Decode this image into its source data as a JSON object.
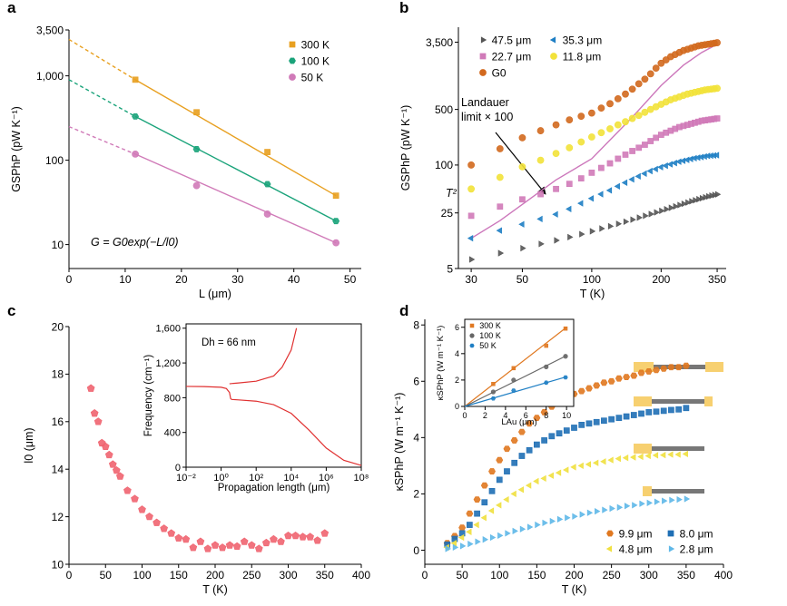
{
  "chart_data": [
    {
      "type": "scatter",
      "label": "a",
      "xlabel": "L (μm)",
      "ylabel": "GSPhP (pW K⁻¹)",
      "xlim": [
        0,
        52
      ],
      "xticks": [
        0,
        10,
        20,
        30,
        40,
        50
      ],
      "yscale": "log",
      "ylim": [
        5.2,
        3500
      ],
      "yticks": [
        10,
        100,
        {
          "value": 1000,
          "label": "1,000"
        },
        {
          "value": 3500,
          "label": "3,500"
        }
      ],
      "legend": "upper right",
      "x": [
        11.8,
        22.7,
        35.3,
        47.5
      ],
      "series": [
        {
          "name": "300 K",
          "color": "#e8a020",
          "marker": "square",
          "values": [
            900,
            370,
            125,
            38
          ]
        },
        {
          "name": "100 K",
          "color": "#1aa37a",
          "marker": "hexagon",
          "values": [
            330,
            135,
            52,
            19
          ]
        },
        {
          "name": "50 K",
          "color": "#d07ab8",
          "marker": "circle",
          "values": [
            118,
            50,
            23,
            10.5
          ]
        }
      ],
      "lines": [
        {
          "color": "#e8a020",
          "dashed": true,
          "x": [
            0,
            11.8
          ],
          "values": [
            2700,
            900
          ]
        },
        {
          "color": "#e8a020",
          "x": [
            11.8,
            47.5
          ],
          "values": [
            900,
            38
          ]
        },
        {
          "color": "#1aa37a",
          "dashed": true,
          "x": [
            0,
            11.8
          ],
          "values": [
            900,
            330
          ]
        },
        {
          "color": "#1aa37a",
          "x": [
            11.8,
            47.5
          ],
          "values": [
            330,
            19
          ]
        },
        {
          "color": "#d07ab8",
          "dashed": true,
          "x": [
            0,
            11.8
          ],
          "values": [
            250,
            118
          ]
        },
        {
          "color": "#d07ab8",
          "x": [
            11.8,
            47.5
          ],
          "values": [
            118,
            10.5
          ]
        }
      ],
      "annotations": [
        "G = G0exp(−L/l0)"
      ]
    },
    {
      "type": "scatter",
      "label": "b",
      "xlabel": "T (K)",
      "ylabel": "GSPhP (pW K⁻¹)",
      "xscale": "log",
      "xlim": [
        26.4,
        383
      ],
      "xticks": [
        30,
        50,
        100,
        200,
        350
      ],
      "yscale": "log",
      "ylim": [
        5,
        5400
      ],
      "yticks": [
        5,
        25,
        100,
        500,
        {
          "value": 3500,
          "label": "3,500"
        }
      ],
      "legend": "upper left",
      "legend_columns": 2,
      "x": [
        30,
        40,
        50,
        60,
        70,
        80,
        90,
        100,
        110,
        120,
        130,
        140,
        150,
        160,
        170,
        180,
        190,
        200,
        210,
        220,
        230,
        240,
        250,
        260,
        270,
        280,
        290,
        300,
        310,
        320,
        330,
        340,
        350
      ],
      "series": [
        {
          "name": "47.5 μm",
          "color": "#555555",
          "marker": "triangle-right",
          "values": [
            6.5,
            7.8,
            9,
            10.2,
            11.3,
            12.4,
            13.5,
            14.7,
            15.9,
            17,
            18.2,
            19.4,
            20.6,
            21.8,
            23,
            24.2,
            25.4,
            26.6,
            27.8,
            29,
            30.2,
            31.4,
            32.6,
            33.8,
            35,
            36.1,
            37.2,
            38.3,
            39.3,
            40.3,
            41.2,
            42,
            42.8
          ]
        },
        {
          "name": "35.3 μm",
          "color": "#1f7fc4",
          "marker": "triangle-left",
          "values": [
            12,
            15,
            18,
            21,
            24,
            28,
            33,
            38,
            43,
            48,
            54,
            60,
            66,
            72,
            78,
            84,
            89,
            94,
            98,
            102,
            106,
            110,
            113,
            116,
            119,
            122,
            124,
            126,
            128,
            130,
            131,
            132,
            133
          ]
        },
        {
          "name": "22.7 μm",
          "color": "#d07ab8",
          "marker": "square",
          "values": [
            23,
            30,
            37,
            43,
            50,
            58,
            68,
            80,
            92,
            105,
            120,
            135,
            150,
            165,
            180,
            200,
            220,
            240,
            255,
            270,
            285,
            300,
            310,
            320,
            330,
            340,
            350,
            360,
            365,
            370,
            375,
            380,
            385
          ]
        },
        {
          "name": "11.8 μm",
          "color": "#f2e23a",
          "marker": "circle",
          "values": [
            50,
            70,
            95,
            115,
            140,
            165,
            195,
            225,
            255,
            285,
            320,
            350,
            385,
            420,
            460,
            500,
            540,
            580,
            620,
            660,
            690,
            720,
            750,
            780,
            800,
            820,
            840,
            860,
            880,
            890,
            900,
            910,
            920
          ]
        },
        {
          "name": "G0",
          "color": "#d2691e",
          "marker": "circle",
          "values": [
            100,
            160,
            220,
            270,
            320,
            370,
            410,
            450,
            520,
            590,
            680,
            780,
            900,
            1050,
            1200,
            1400,
            1650,
            1900,
            2100,
            2300,
            2450,
            2600,
            2750,
            2850,
            2950,
            3050,
            3150,
            3200,
            3250,
            3300,
            3350,
            3400,
            3450
          ]
        }
      ],
      "lines": [
        {
          "color": "#cc77bb",
          "x": [
            30,
            40,
            50,
            70,
            100,
            150,
            200,
            250,
            300,
            350
          ],
          "values": [
            12,
            20,
            32,
            65,
            120,
            400,
            1000,
            1800,
            2600,
            3300
          ]
        }
      ],
      "annotations": [
        "Landauer",
        "limit × 100",
        "T²"
      ]
    },
    {
      "type": "scatter",
      "label": "c",
      "xlabel": "T (K)",
      "ylabel": "l0 (μm)",
      "xlim": [
        0,
        400
      ],
      "xticks": [
        0,
        50,
        100,
        150,
        200,
        250,
        300,
        350,
        400
      ],
      "ylim": [
        10,
        20
      ],
      "yticks": [
        10,
        12,
        14,
        16,
        18,
        20
      ],
      "x": [
        30,
        35,
        40,
        45,
        50,
        55,
        60,
        65,
        70,
        80,
        90,
        100,
        110,
        120,
        130,
        140,
        150,
        160,
        170,
        180,
        190,
        200,
        210,
        220,
        230,
        240,
        250,
        260,
        270,
        280,
        290,
        300,
        310,
        320,
        330,
        340,
        350
      ],
      "series": [
        {
          "color": "#f06470",
          "marker": "pentagon",
          "values": [
            17.4,
            16.35,
            16,
            15.1,
            14.95,
            14.6,
            14.2,
            13.95,
            13.7,
            13.1,
            12.75,
            12.3,
            12.0,
            11.75,
            11.5,
            11.3,
            11.1,
            11.05,
            10.7,
            10.95,
            10.65,
            10.8,
            10.7,
            10.8,
            10.75,
            10.95,
            10.8,
            10.65,
            10.9,
            11.05,
            10.95,
            11.2,
            11.2,
            11.15,
            11.15,
            11.0,
            11.3
          ]
        }
      ],
      "inset": {
        "type": "line",
        "xlabel": "Propagation length (μm)",
        "ylabel": "Frequency (cm⁻¹)",
        "xscale": "log",
        "xlim": [
          0.01,
          100000000
        ],
        "xticks": [
          {
            "value": 0.01,
            "label": "10⁻²"
          },
          {
            "value": 1,
            "label": "10⁰"
          },
          {
            "value": 100,
            "label": "10²"
          },
          {
            "value": 10000,
            "label": "10⁴"
          },
          {
            "value": 1000000,
            "label": "10⁶"
          },
          {
            "value": 100000000,
            "label": "10⁸"
          }
        ],
        "ylim": [
          0,
          1650
        ],
        "yticks": [
          0,
          400,
          800,
          {
            "value": 1200,
            "label": "1,200"
          },
          {
            "value": 1600,
            "label": "1,600"
          }
        ],
        "lines": [
          {
            "color": "#e03030",
            "x": [
              0.01,
              0.1,
              1,
              2,
              3,
              3.5,
              4,
              10,
              100,
              1000,
              10000,
              100000,
              1000000,
              10000000,
              100000000
            ],
            "values": [
              930,
              928,
              920,
              905,
              860,
              790,
              780,
              775,
              760,
              720,
              620,
              430,
              220,
              80,
              20
            ]
          },
          {
            "color": "#e03030",
            "x": [
              3,
              5,
              10,
              100,
              1000,
              3000,
              10000,
              20000
            ],
            "values": [
              960,
              965,
              970,
              990,
              1050,
              1150,
              1350,
              1600
            ]
          }
        ],
        "annotations": [
          "Dh = 66 nm"
        ]
      }
    },
    {
      "type": "scatter",
      "label": "d",
      "xlabel": "T (K)",
      "ylabel": "κSPhP (W m⁻¹ K⁻¹)",
      "xlim": [
        0,
        400
      ],
      "xticks": [
        0,
        50,
        100,
        150,
        200,
        250,
        300,
        350,
        400
      ],
      "ylim": [
        -0.5,
        8.2
      ],
      "yticks": [
        0,
        2,
        4,
        6,
        8
      ],
      "legend": "lower right",
      "legend_columns": 2,
      "x": [
        30,
        40,
        50,
        60,
        70,
        80,
        90,
        100,
        110,
        120,
        130,
        140,
        150,
        160,
        170,
        180,
        190,
        200,
        210,
        220,
        230,
        240,
        250,
        260,
        270,
        280,
        290,
        300,
        310,
        320,
        330,
        340,
        350
      ],
      "series": [
        {
          "name": "9.9 μm",
          "color": "#e07820",
          "marker": "hexagon",
          "values": [
            0.25,
            0.5,
            0.8,
            1.3,
            1.8,
            2.3,
            2.8,
            3.2,
            3.6,
            3.9,
            4.2,
            4.5,
            4.7,
            4.9,
            5.1,
            5.3,
            5.4,
            5.55,
            5.65,
            5.75,
            5.85,
            5.95,
            6.0,
            6.1,
            6.15,
            6.2,
            6.3,
            6.35,
            6.4,
            6.45,
            6.5,
            6.5,
            6.55
          ]
        },
        {
          "name": "8.0 μm",
          "color": "#1f6fb5",
          "marker": "square",
          "values": [
            0.2,
            0.4,
            0.6,
            0.9,
            1.3,
            1.7,
            2.1,
            2.5,
            2.8,
            3.1,
            3.35,
            3.55,
            3.75,
            3.9,
            4.05,
            4.15,
            4.25,
            4.35,
            4.45,
            4.5,
            4.55,
            4.6,
            4.65,
            4.7,
            4.75,
            4.8,
            4.85,
            4.9,
            4.92,
            4.95,
            4.98,
            5.0,
            5.05
          ]
        },
        {
          "name": "4.8 μm",
          "color": "#f0e040",
          "marker": "triangle-left",
          "values": [
            0.1,
            0.25,
            0.45,
            0.65,
            0.9,
            1.15,
            1.4,
            1.6,
            1.8,
            2.0,
            2.15,
            2.3,
            2.45,
            2.55,
            2.65,
            2.75,
            2.85,
            2.95,
            3.0,
            3.05,
            3.1,
            3.15,
            3.2,
            3.25,
            3.28,
            3.3,
            3.32,
            3.35,
            3.37,
            3.38,
            3.4,
            3.4,
            3.42
          ]
        },
        {
          "name": "2.8 μm",
          "color": "#5fb8e8",
          "marker": "triangle-right",
          "values": [
            0.05,
            0.1,
            0.15,
            0.22,
            0.3,
            0.38,
            0.45,
            0.52,
            0.6,
            0.68,
            0.75,
            0.82,
            0.9,
            0.97,
            1.03,
            1.1,
            1.15,
            1.2,
            1.27,
            1.33,
            1.38,
            1.43,
            1.48,
            1.52,
            1.57,
            1.6,
            1.65,
            1.68,
            1.72,
            1.75,
            1.78,
            1.8,
            1.82
          ]
        }
      ],
      "inset": {
        "type": "scatter",
        "xlabel": "LAu (μm)",
        "ylabel": "κSPhP (W m⁻¹ K⁻¹)",
        "xlim": [
          0,
          10.7
        ],
        "xticks": [
          0,
          2,
          4,
          6,
          8,
          10
        ],
        "ylim": [
          0,
          6.6
        ],
        "yticks": [
          0,
          2,
          4,
          6
        ],
        "legend": "upper left",
        "x": [
          2.8,
          4.8,
          8.0,
          9.9
        ],
        "series": [
          {
            "name": "300 K",
            "color": "#e07820",
            "marker": "square",
            "values": [
              1.7,
              2.9,
              4.6,
              5.9
            ]
          },
          {
            "name": "100 K",
            "color": "#666666",
            "marker": "circle",
            "values": [
              1.1,
              2.0,
              3.0,
              3.8
            ]
          },
          {
            "name": "50 K",
            "color": "#1f7fc4",
            "marker": "hexagon",
            "values": [
              0.6,
              1.2,
              1.8,
              2.2
            ]
          }
        ],
        "lines": [
          {
            "color": "#e07820",
            "x": [
              0,
              10
            ],
            "values": [
              0,
              6.0
            ]
          },
          {
            "color": "#666666",
            "x": [
              0,
              10
            ],
            "values": [
              0,
              3.85
            ]
          },
          {
            "color": "#1f7fc4",
            "x": [
              0,
              10
            ],
            "values": [
              0,
              2.25
            ]
          }
        ]
      }
    }
  ]
}
